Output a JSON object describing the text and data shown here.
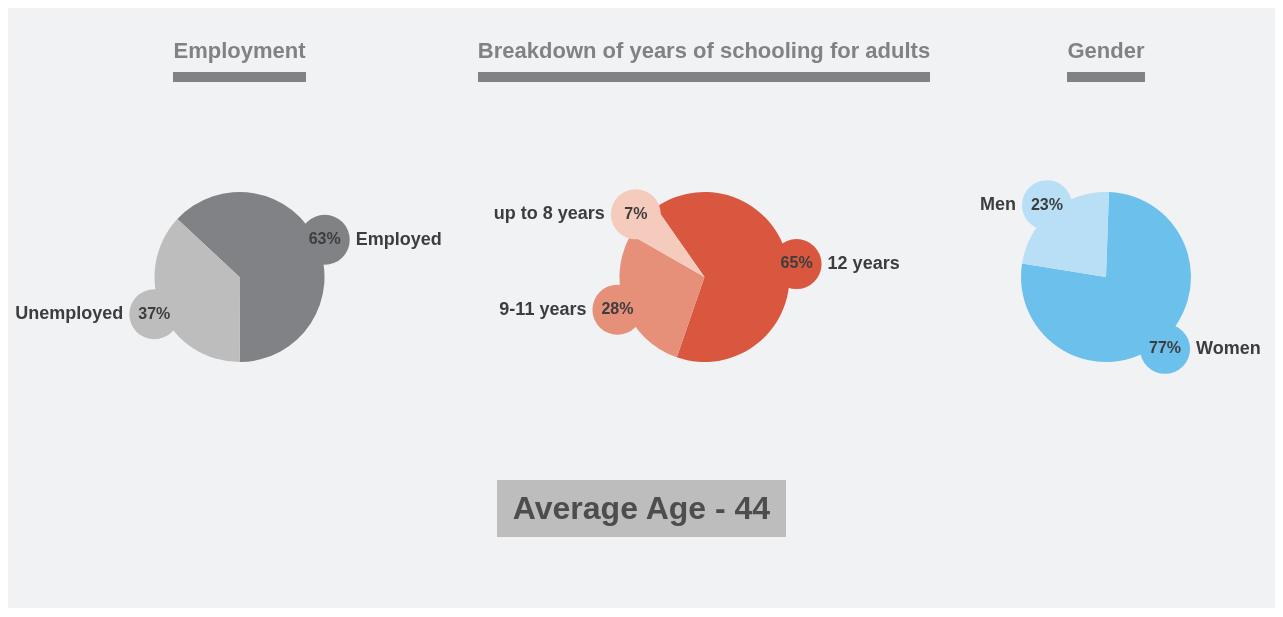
{
  "chart_data": [
    {
      "type": "pie",
      "title": "Employment",
      "categories": [
        "Employed",
        "Unemployed"
      ],
      "values": [
        63,
        37
      ],
      "colors": [
        "#808285",
        "#bdbdbd"
      ],
      "value_labels": [
        "63%",
        "37%"
      ]
    },
    {
      "type": "pie",
      "title": "Breakdown of years of schooling for adults",
      "categories": [
        "12 years",
        "9-11 years",
        "up to 8 years"
      ],
      "values": [
        65,
        28,
        7
      ],
      "colors": [
        "#d9573f",
        "#e6907a",
        "#f4cbbd"
      ],
      "value_labels": [
        "65%",
        "28%",
        "7%"
      ]
    },
    {
      "type": "pie",
      "title": "Gender",
      "categories": [
        "Women",
        "Men"
      ],
      "values": [
        77,
        23
      ],
      "colors": [
        "#6bc0ec",
        "#b8dff5"
      ],
      "value_labels": [
        "77%",
        "23%"
      ]
    },
    {
      "type": "other",
      "title": "Average Age - 44"
    }
  ]
}
